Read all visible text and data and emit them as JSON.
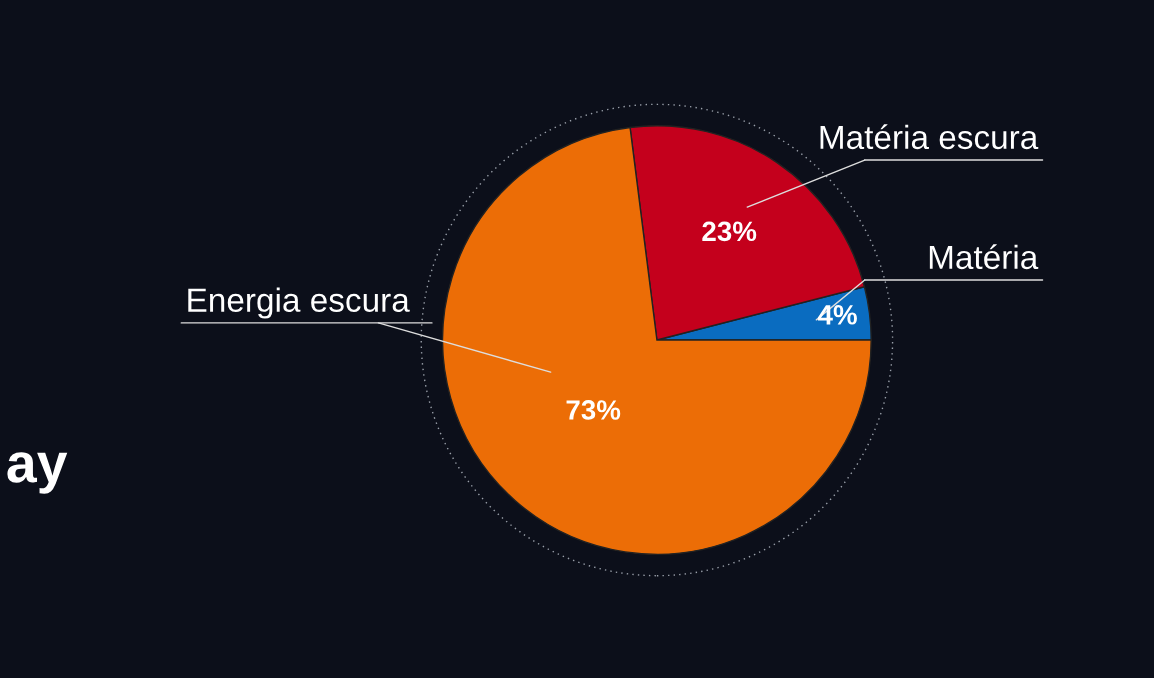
{
  "chart_data": {
    "type": "pie",
    "categories": [
      "Matéria",
      "Matéria escura",
      "Energia escura"
    ],
    "values": [
      4,
      23,
      73
    ],
    "colors": [
      "#0a6cc0",
      "#c4001c",
      "#ec6d06"
    ],
    "value_labels": [
      "4%",
      "23%",
      "73%"
    ],
    "annotations": [
      "ay"
    ]
  }
}
